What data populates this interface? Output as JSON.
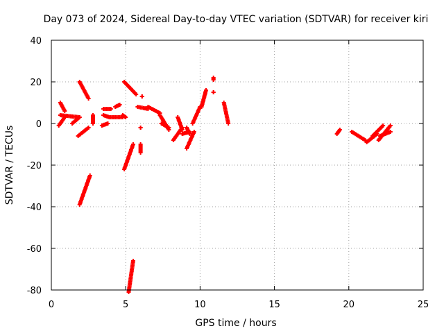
{
  "chart_data": {
    "type": "scatter",
    "title": "Day 073 of 2024, Sidereal Day-to-day VTEC variation (SDTVAR) for receiver kiri",
    "xlabel": "GPS time / hours",
    "ylabel": "SDTVAR / TECUs",
    "xlim": [
      0,
      25
    ],
    "ylim": [
      -80,
      40
    ],
    "xticks": [
      0,
      5,
      10,
      15,
      20,
      25
    ],
    "yticks": [
      -80,
      -60,
      -40,
      -20,
      0,
      20,
      40
    ],
    "xtick_labels": [
      "0",
      "5",
      "10",
      "15",
      "20",
      "25"
    ],
    "ytick_labels": [
      "-80",
      "-60",
      "-40",
      "-20",
      "0",
      "20",
      "40"
    ],
    "grid": true,
    "marker": "plus",
    "marker_color": "#ff0000",
    "series": [
      {
        "segments": [
          [
            [
              0.6,
              10
            ],
            [
              0.9,
              6
            ]
          ],
          [
            [
              0.5,
              -1
            ],
            [
              0.9,
              3
            ]
          ],
          [
            [
              0.6,
              4
            ],
            [
              1.9,
              3
            ]
          ],
          [
            [
              1.4,
              0
            ],
            [
              1.9,
              3
            ]
          ],
          [
            [
              1.9,
              20
            ],
            [
              2.5,
              12
            ]
          ],
          [
            [
              1.8,
              -6
            ],
            [
              2.5,
              -2
            ]
          ],
          [
            [
              1.9,
              -39
            ],
            [
              2.6,
              -25
            ]
          ],
          [
            [
              2.8,
              4
            ],
            [
              2.8,
              0
            ]
          ],
          [
            [
              3.4,
              -1
            ],
            [
              3.8,
              0
            ]
          ],
          [
            [
              3.5,
              4
            ],
            [
              3.9,
              3
            ]
          ],
          [
            [
              3.5,
              7
            ],
            [
              4.0,
              7
            ]
          ],
          [
            [
              4.0,
              3
            ],
            [
              4.8,
              3
            ]
          ],
          [
            [
              4.3,
              8
            ],
            [
              4.6,
              9
            ]
          ],
          [
            [
              4.8,
              4
            ],
            [
              5.0,
              3
            ]
          ],
          [
            [
              4.9,
              20
            ],
            [
              5.7,
              14
            ]
          ],
          [
            [
              4.9,
              -22
            ],
            [
              5.5,
              -10
            ]
          ],
          [
            [
              5.2,
              -81
            ],
            [
              5.5,
              -66
            ]
          ],
          [
            [
              5.8,
              8
            ],
            [
              6.5,
              7
            ]
          ],
          [
            [
              6.0,
              -10
            ],
            [
              6.0,
              -14
            ]
          ],
          [
            [
              6.0,
              -2
            ],
            [
              6.0,
              -2
            ]
          ],
          [
            [
              6.1,
              13
            ],
            [
              6.1,
              13
            ]
          ],
          [
            [
              6.5,
              8
            ],
            [
              7.3,
              5
            ]
          ],
          [
            [
              7.3,
              4
            ],
            [
              7.9,
              -3
            ]
          ],
          [
            [
              7.4,
              0
            ],
            [
              7.9,
              -2
            ]
          ],
          [
            [
              8.2,
              -8
            ],
            [
              8.8,
              -2
            ]
          ],
          [
            [
              8.5,
              3
            ],
            [
              8.8,
              -3
            ]
          ],
          [
            [
              8.8,
              -5
            ],
            [
              9.3,
              -4
            ]
          ],
          [
            [
              9.1,
              -12
            ],
            [
              9.6,
              -4
            ]
          ],
          [
            [
              9.1,
              -2
            ],
            [
              9.3,
              -5
            ]
          ],
          [
            [
              9.5,
              0
            ],
            [
              10.0,
              8
            ]
          ],
          [
            [
              10.1,
              8
            ],
            [
              10.4,
              16
            ]
          ],
          [
            [
              10.9,
              21
            ],
            [
              10.9,
              22
            ]
          ],
          [
            [
              10.9,
              15
            ],
            [
              10.9,
              15
            ]
          ],
          [
            [
              11.6,
              10
            ],
            [
              11.9,
              0
            ]
          ],
          [
            [
              19.2,
              -5
            ],
            [
              19.4,
              -3
            ]
          ],
          [
            [
              20.2,
              -4
            ],
            [
              21.1,
              -8
            ]
          ],
          [
            [
              21.2,
              -9
            ],
            [
              21.9,
              -5
            ]
          ],
          [
            [
              21.6,
              -6
            ],
            [
              22.3,
              -1
            ]
          ],
          [
            [
              22.0,
              -8
            ],
            [
              22.8,
              -1
            ]
          ],
          [
            [
              22.1,
              -6
            ],
            [
              22.8,
              -4
            ]
          ]
        ]
      }
    ]
  }
}
